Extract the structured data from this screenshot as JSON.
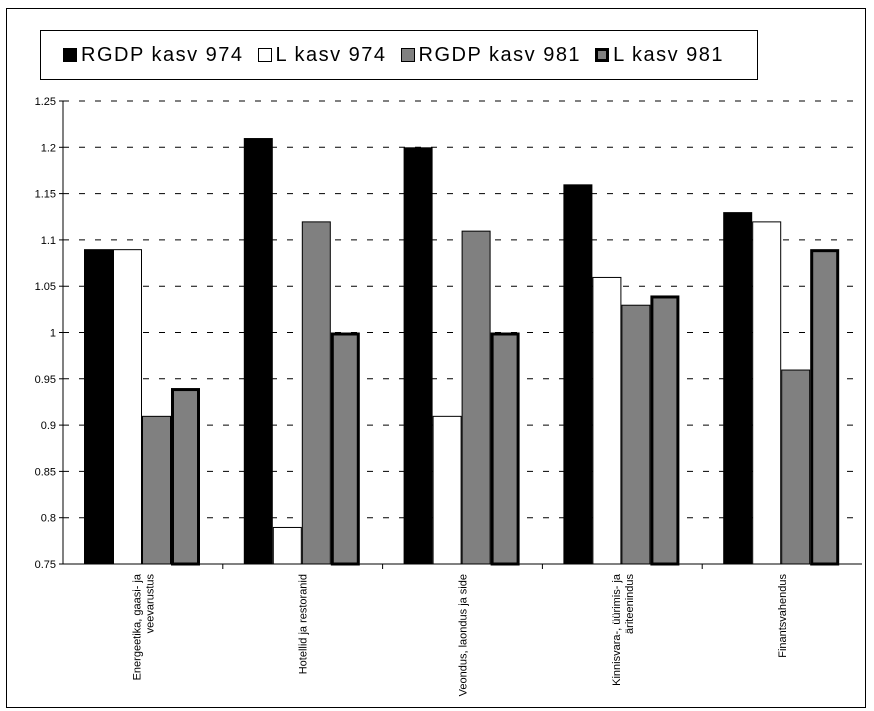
{
  "chart_data": {
    "type": "bar",
    "categories": [
      [
        "Energeetika, gaasi- ja",
        "veevarustus"
      ],
      [
        "Hotellid ja restoranid"
      ],
      [
        "Veondus, laondus ja side"
      ],
      [
        "Kinnisvara-, üürimis- ja",
        "äriteenindus"
      ],
      [
        "Finantsvahendus"
      ]
    ],
    "series": [
      {
        "name": "RGDP kasv 974",
        "values": [
          1.09,
          1.21,
          1.2,
          1.16,
          1.13
        ],
        "fill": "#000000",
        "stroke": "#000000",
        "stroke_weight": "thin"
      },
      {
        "name": "L kasv 974",
        "values": [
          1.09,
          0.79,
          0.91,
          1.06,
          1.12
        ],
        "fill": "#ffffff",
        "stroke": "#000000",
        "stroke_weight": "thin"
      },
      {
        "name": "RGDP kasv 981",
        "values": [
          0.91,
          1.12,
          1.11,
          1.03,
          0.96
        ],
        "fill": "#808080",
        "stroke": "#000000",
        "stroke_weight": "thin"
      },
      {
        "name": "L kasv 981",
        "values": [
          0.94,
          1.0,
          1.0,
          1.04,
          1.09
        ],
        "fill": "#808080",
        "stroke": "#000000",
        "stroke_weight": "thick"
      }
    ],
    "ylim": [
      0.75,
      1.25
    ],
    "yticks": [
      "0.75",
      "0.8",
      "0.85",
      "0.9",
      "0.95",
      "1",
      "1.05",
      "1.1",
      "1.15",
      "1.2",
      "1.25"
    ],
    "grid": "dashed horizontal",
    "legend": "top",
    "title": "",
    "xlabel": "",
    "ylabel": ""
  }
}
